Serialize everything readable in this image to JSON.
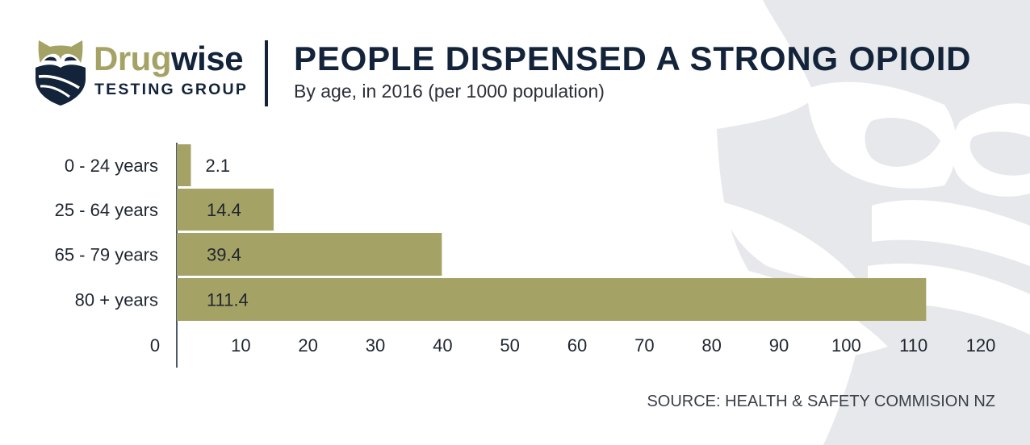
{
  "brand": {
    "name_part1": "Drug",
    "name_part2": "wise",
    "subtitle": "TESTING GROUP",
    "logo_icon": "owl-shield-icon",
    "colors": {
      "gold": "#a5a265",
      "navy": "#13243a",
      "watermark": "#e6e8ec"
    }
  },
  "chart_data": {
    "type": "bar",
    "orientation": "horizontal",
    "title": "PEOPLE DISPENSED A STRONG OPIOID",
    "subtitle": "By age, in 2016 (per 1000 population)",
    "categories": [
      "0 - 24 years",
      "25 - 64 years",
      "65 - 79 years",
      "80 + years"
    ],
    "values": [
      2.1,
      14.4,
      39.4,
      111.4
    ],
    "value_labels": [
      "2.1",
      "14.4",
      "39.4",
      "111.4"
    ],
    "x_ticks": [
      "0",
      "10",
      "20",
      "30",
      "40",
      "50",
      "60",
      "70",
      "80",
      "90",
      "100",
      "110",
      "120"
    ],
    "xlim": [
      0,
      120
    ],
    "xlabel": "",
    "ylabel": "",
    "grid": false,
    "legend": "none",
    "bar_color": "#a5a265",
    "source": "SOURCE: HEALTH & SAFETY COMMISION NZ"
  }
}
